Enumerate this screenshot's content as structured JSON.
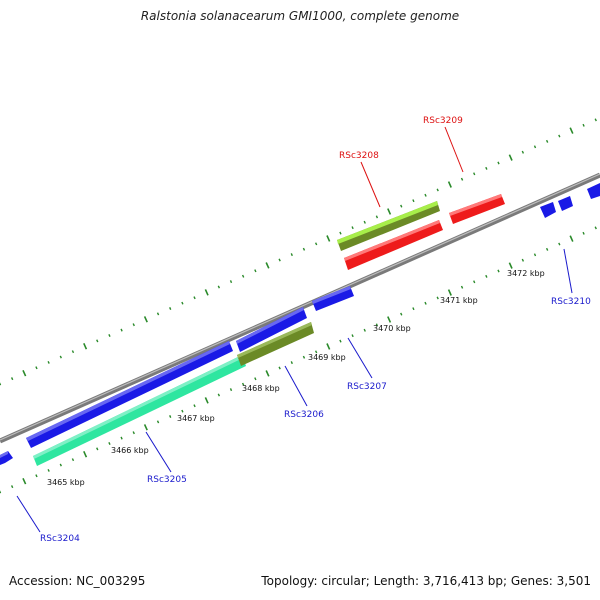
{
  "title": "Ralstonia solanacearum GMI1000, complete genome",
  "footer": {
    "accession": "Accession: NC_003295",
    "summary": "Topology: circular; Length: 3,716,413 bp; Genes: 3,501"
  },
  "colors": {
    "forward_gene": "#1a1ae6",
    "reverse_gene": "#ee1b1b",
    "highlight_green": "#99e63a",
    "olive": "#6b8a26",
    "teal": "#33e6a3",
    "label_blue": "#1a1acc",
    "label_red": "#dd1111",
    "backbone": "#888888",
    "tick": "#2a8a2a"
  },
  "kbp_labels": [
    "3465 kbp",
    "3466 kbp",
    "3467 kbp",
    "3468 kbp",
    "3469 kbp",
    "3470 kbp",
    "3471 kbp",
    "3472 kbp"
  ],
  "gene_labels": [
    "RSc3204",
    "RSc3205",
    "RSc3206",
    "RSc3207",
    "RSc3208",
    "RSc3209",
    "RSc3210"
  ]
}
